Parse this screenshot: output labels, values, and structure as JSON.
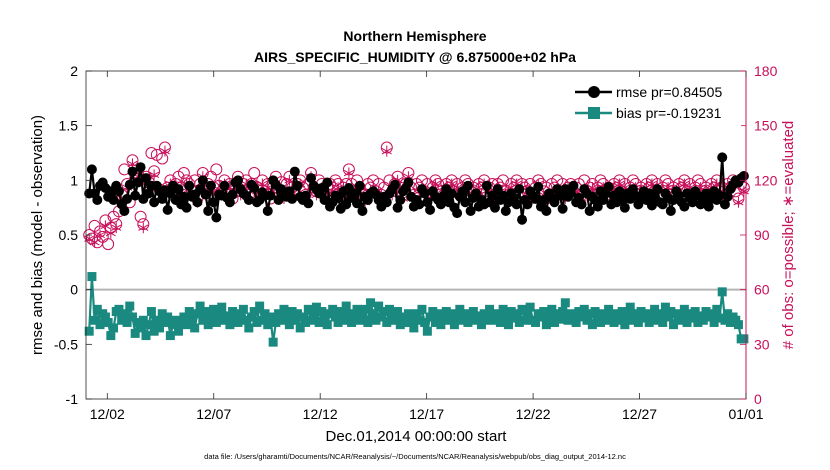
{
  "chart_data": {
    "type": "line",
    "title": "Northern Hemisphere",
    "subtitle": "AIRS_SPECIFIC_HUMIDITY @ 6.875000e+02 hPa",
    "xlabel": "Dec.01,2014 00:00:00 start",
    "ylabel": "rmse and bias (model - observation)",
    "ylabel_right": "# of obs: o=possible; ∗=evaluated",
    "footnote": "data file: /Users/gharamti/Documents/NCAR/Reanalysis/~/Documents/NCAR/Reanalysis/webpub/obs_diag_output_2014-12.nc",
    "xlim": [
      0,
      31
    ],
    "ylim": [
      -1,
      2
    ],
    "ylim_right": [
      0,
      180
    ],
    "x_ticks": [
      1,
      6,
      11,
      16,
      21,
      26,
      31
    ],
    "x_tick_labels": [
      "12/02",
      "12/07",
      "12/12",
      "12/17",
      "12/22",
      "12/27",
      "01/01"
    ],
    "y_ticks": [
      -1,
      -0.5,
      0,
      0.5,
      1,
      1.5,
      2
    ],
    "y_tick_labels": [
      "-1",
      "-0.5",
      "0",
      "0.5",
      "1",
      "1.5",
      "2"
    ],
    "y_right_ticks": [
      0,
      30,
      60,
      90,
      120,
      150,
      180
    ],
    "y_right_tick_labels": [
      "0",
      "30",
      "60",
      "90",
      "120",
      "150",
      "180"
    ],
    "zero_line": 0,
    "colors": {
      "rmse": "#000000",
      "bias": "#1a8a80",
      "obs": "#c8105a",
      "zero": "#b5b5b5"
    },
    "legend": [
      "rmse pr=0.84505",
      "bias pr=-0.19231"
    ],
    "series": [
      {
        "name": "rmse pr=0.84505",
        "values": [
          0.88,
          1.1,
          0.88,
          0.82,
          0.95,
          0.98,
          0.93,
          0.85,
          0.9,
          0.82,
          0.95,
          0.9,
          0.78,
          0.72,
          0.83,
          0.96,
          1.08,
          0.86,
          0.98,
          1.12,
          0.83,
          1.02,
          0.88,
          0.95,
          0.8,
          0.95,
          0.9,
          0.83,
          0.91,
          0.73,
          0.88,
          0.95,
          0.82,
          0.92,
          0.78,
          0.85,
          0.75,
          0.95,
          0.85,
          0.87,
          0.8,
          0.92,
          1.0,
          0.87,
          0.72,
          0.95,
          0.8,
          0.66,
          0.87,
          0.86,
          0.95,
          0.84,
          0.8,
          0.87,
          0.98,
          1.0,
          0.92,
          0.88,
          0.86,
          0.82,
          0.96,
          0.93,
          0.8,
          0.82,
          0.89,
          0.86,
          0.72,
          0.86,
          1.0,
          0.96,
          0.82,
          0.92,
          0.88,
          0.85,
          0.9,
          0.83,
          1.08,
          0.95,
          0.85,
          0.82,
          0.86,
          0.79,
          1.02,
          0.95,
          0.92,
          0.88,
          0.93,
          0.82,
          0.98,
          0.76,
          0.8,
          0.86,
          0.84,
          0.74,
          0.9,
          0.78,
          0.93,
          0.84,
          0.88,
          0.79,
          0.95,
          0.72,
          0.85,
          0.82,
          0.88,
          0.9,
          0.87,
          0.82,
          0.76,
          0.85,
          0.8,
          0.88,
          0.92,
          0.96,
          0.75,
          0.82,
          0.9,
          0.93,
          0.98,
          0.85,
          0.76,
          0.82,
          0.78,
          0.92,
          0.88,
          0.8,
          0.73,
          0.9,
          0.85,
          0.82,
          0.78,
          0.86,
          0.92,
          0.8,
          0.88,
          0.75,
          0.7,
          0.85,
          0.9,
          0.8,
          0.95,
          0.72,
          0.84,
          0.88,
          0.76,
          0.82,
          0.78,
          0.95,
          0.8,
          0.86,
          0.75,
          0.92,
          0.82,
          0.86,
          0.72,
          0.8,
          0.88,
          0.84,
          0.78,
          0.92,
          0.64,
          0.82,
          0.78,
          0.9,
          0.86,
          0.83,
          0.94,
          0.76,
          0.82,
          0.72,
          0.88,
          0.84,
          0.8,
          0.92,
          0.86,
          0.74,
          0.92,
          0.85,
          0.88,
          0.95,
          0.8,
          0.84,
          0.78,
          0.92,
          0.88,
          0.72,
          0.85,
          0.82,
          0.76,
          0.9,
          0.82,
          0.88,
          0.94,
          0.78,
          0.86,
          0.8,
          0.9,
          0.82,
          0.75,
          0.88,
          0.83,
          0.92,
          0.86,
          0.78,
          0.84,
          0.9,
          0.82,
          0.88,
          0.77,
          0.85,
          0.92,
          0.8,
          0.78,
          0.88,
          0.84,
          0.72,
          0.82,
          0.9,
          0.86,
          0.8,
          0.76,
          0.88,
          0.84,
          0.8,
          0.9,
          0.86,
          0.78,
          0.82,
          0.88,
          0.76,
          0.83,
          0.9,
          0.82,
          0.86,
          1.21,
          0.78,
          0.85,
          0.92,
          0.96,
          1.0,
          0.98,
          1.02,
          1.04
        ]
      },
      {
        "name": "bias pr=-0.19231",
        "values": [
          -0.38,
          0.12,
          -0.28,
          -0.18,
          -0.32,
          -0.22,
          -0.25,
          -0.3,
          -0.42,
          -0.35,
          -0.2,
          -0.18,
          -0.28,
          -0.22,
          -0.3,
          -0.15,
          -0.25,
          -0.4,
          -0.3,
          -0.35,
          -0.28,
          -0.42,
          -0.32,
          -0.2,
          -0.38,
          -0.28,
          -0.35,
          -0.22,
          -0.3,
          -0.25,
          -0.42,
          -0.32,
          -0.28,
          -0.38,
          -0.3,
          -0.25,
          -0.32,
          -0.2,
          -0.28,
          -0.35,
          -0.22,
          -0.15,
          -0.28,
          -0.2,
          -0.32,
          -0.25,
          -0.18,
          -0.3,
          -0.22,
          -0.16,
          -0.28,
          -0.24,
          -0.32,
          -0.2,
          -0.26,
          -0.3,
          -0.22,
          -0.18,
          -0.28,
          -0.35,
          -0.25,
          -0.2,
          -0.3,
          -0.15,
          -0.28,
          -0.22,
          -0.32,
          -0.25,
          -0.48,
          -0.3,
          -0.22,
          -0.28,
          -0.18,
          -0.25,
          -0.32,
          -0.2,
          -0.28,
          -0.22,
          -0.35,
          -0.25,
          -0.3,
          -0.18,
          -0.28,
          -0.22,
          -0.16,
          -0.3,
          -0.2,
          -0.26,
          -0.32,
          -0.22,
          -0.18,
          -0.25,
          -0.3,
          -0.2,
          -0.28,
          -0.15,
          -0.22,
          -0.3,
          -0.25,
          -0.18,
          -0.28,
          -0.22,
          -0.18,
          -0.3,
          -0.12,
          -0.22,
          -0.28,
          -0.15,
          -0.25,
          -0.2,
          -0.3,
          -0.18,
          -0.24,
          -0.28,
          -0.2,
          -0.32,
          -0.25,
          -0.3,
          -0.22,
          -0.28,
          -0.35,
          -0.22,
          -0.28,
          -0.18,
          -0.3,
          -0.38,
          -0.25,
          -0.2,
          -0.3,
          -0.22,
          -0.32,
          -0.26,
          -0.2,
          -0.28,
          -0.22,
          -0.32,
          -0.25,
          -0.18,
          -0.28,
          -0.22,
          -0.3,
          -0.26,
          -0.2,
          -0.28,
          -0.24,
          -0.32,
          -0.22,
          -0.28,
          -0.18,
          -0.25,
          -0.28,
          -0.22,
          -0.3,
          -0.18,
          -0.25,
          -0.32,
          -0.2,
          -0.26,
          -0.22,
          -0.3,
          -0.18,
          -0.28,
          -0.22,
          -0.16,
          -0.28,
          -0.3,
          -0.22,
          -0.25,
          -0.2,
          -0.32,
          -0.24,
          -0.18,
          -0.3,
          -0.22,
          -0.27,
          -0.2,
          -0.12,
          -0.28,
          -0.22,
          -0.26,
          -0.3,
          -0.2,
          -0.25,
          -0.18,
          -0.28,
          -0.22,
          -0.32,
          -0.2,
          -0.26,
          -0.3,
          -0.22,
          -0.28,
          -0.18,
          -0.25,
          -0.3,
          -0.22,
          -0.28,
          -0.2,
          -0.32,
          -0.24,
          -0.16,
          -0.28,
          -0.22,
          -0.3,
          -0.2,
          -0.26,
          -0.22,
          -0.3,
          -0.25,
          -0.18,
          -0.28,
          -0.22,
          -0.3,
          -0.16,
          -0.25,
          -0.2,
          -0.32,
          -0.22,
          -0.28,
          -0.24,
          -0.18,
          -0.3,
          -0.22,
          -0.26,
          -0.2,
          -0.3,
          -0.24,
          -0.28,
          -0.2,
          -0.25,
          -0.22,
          -0.3,
          -0.18,
          -0.26,
          -0.02,
          -0.28,
          -0.22,
          -0.3,
          -0.25,
          -0.28,
          -0.32,
          -0.45,
          -0.45
        ]
      }
    ],
    "obs_possible": [
      90,
      88,
      95,
      86,
      92,
      89,
      98,
      85,
      94,
      100,
      96,
      103,
      112,
      126,
      118,
      108,
      131,
      121,
      124,
      100,
      96,
      122,
      119,
      135,
      125,
      134,
      115,
      132,
      138,
      116,
      120,
      112,
      118,
      122,
      116,
      124,
      120,
      118,
      114,
      120,
      110,
      118,
      124,
      114,
      118,
      122,
      116,
      126,
      117,
      114,
      120,
      112,
      118,
      110,
      116,
      122,
      114,
      118,
      120,
      112,
      118,
      124,
      116,
      112,
      120,
      114,
      118,
      110,
      116,
      122,
      114,
      119,
      112,
      118,
      122,
      116,
      114,
      118,
      120,
      116,
      112,
      118,
      124,
      116,
      114,
      120,
      118,
      112,
      116,
      118,
      116,
      120,
      118,
      112,
      116,
      118,
      126,
      118,
      114,
      120,
      116,
      112,
      110,
      118,
      116,
      120,
      114,
      118,
      112,
      116,
      138,
      120,
      114,
      118,
      122,
      116,
      112,
      118,
      124,
      116,
      112,
      118,
      116,
      120,
      114,
      118,
      112,
      116,
      120,
      118,
      114,
      112,
      118,
      116,
      120,
      114,
      118,
      112,
      116,
      120,
      118,
      114,
      116,
      112,
      118,
      116,
      120,
      114,
      116,
      118,
      112,
      118,
      116,
      120,
      114,
      112,
      118,
      116,
      120,
      112,
      118,
      116,
      114,
      118,
      112,
      116,
      120,
      118,
      114,
      116,
      112,
      118,
      116,
      120,
      114,
      118,
      112,
      116,
      118,
      114,
      116,
      118,
      112,
      120,
      114,
      116,
      118,
      112,
      116,
      120,
      118,
      114,
      116,
      112,
      118,
      116,
      120,
      114,
      118,
      112,
      116,
      120,
      118,
      114,
      116,
      112,
      118,
      116,
      120,
      114,
      118,
      112,
      116,
      120,
      118,
      114,
      116,
      112,
      118,
      116,
      120,
      114,
      118,
      112,
      116,
      120,
      118,
      114,
      116,
      112,
      118,
      116,
      120,
      114,
      116,
      112,
      118,
      116,
      120,
      114,
      110,
      118,
      116
    ],
    "obs_evaluated": [
      88,
      92,
      86,
      94,
      90,
      87,
      95,
      84,
      91,
      98,
      94,
      101,
      110,
      124,
      116,
      106,
      129,
      119,
      122,
      98,
      94,
      120,
      117,
      133,
      123,
      132,
      113,
      130,
      136,
      114,
      118,
      110,
      116,
      120,
      114,
      122,
      118,
      116,
      112,
      118,
      108,
      116,
      122,
      112,
      116,
      120,
      114,
      124,
      115,
      112,
      118,
      110,
      116,
      108,
      114,
      120,
      112,
      116,
      118,
      110,
      116,
      122,
      114,
      110,
      118,
      112,
      116,
      108,
      114,
      120,
      112,
      117,
      110,
      116,
      120,
      114,
      112,
      116,
      118,
      114,
      110,
      116,
      122,
      114,
      112,
      118,
      116,
      110,
      114,
      116,
      114,
      118,
      116,
      110,
      114,
      116,
      124,
      116,
      112,
      118,
      114,
      110,
      108,
      116,
      114,
      118,
      112,
      116,
      110,
      114,
      136,
      118,
      112,
      116,
      120,
      114,
      110,
      116,
      122,
      114,
      110,
      116,
      114,
      118,
      112,
      116,
      110,
      114,
      118,
      116,
      112,
      110,
      116,
      114,
      118,
      112,
      116,
      110,
      114,
      118,
      116,
      112,
      114,
      110,
      116,
      114,
      118,
      112,
      114,
      116,
      110,
      116,
      114,
      118,
      112,
      110,
      116,
      114,
      118,
      110,
      116,
      114,
      112,
      116,
      110,
      114,
      118,
      116,
      112,
      114,
      110,
      116,
      114,
      118,
      112,
      116,
      110,
      114,
      116,
      112,
      114,
      116,
      110,
      118,
      112,
      114,
      116,
      110,
      114,
      118,
      116,
      112,
      114,
      110,
      116,
      114,
      118,
      112,
      116,
      110,
      114,
      118,
      116,
      112,
      114,
      110,
      116,
      114,
      118,
      112,
      116,
      110,
      114,
      118,
      116,
      112,
      114,
      110,
      116,
      114,
      118,
      112,
      116,
      110,
      114,
      118,
      116,
      112,
      114,
      110,
      116,
      114,
      118,
      112,
      114,
      110,
      116,
      114,
      118,
      112,
      108,
      116,
      114
    ]
  }
}
